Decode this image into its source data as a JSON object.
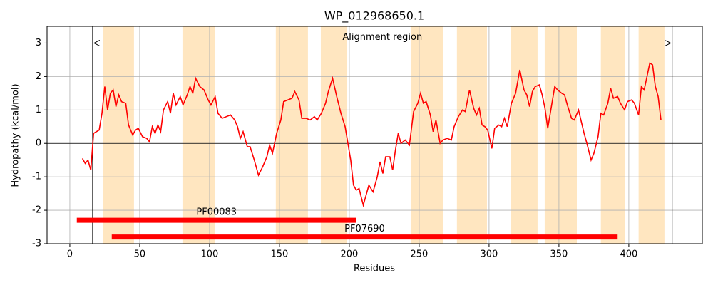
{
  "chart_data": {
    "type": "line",
    "title": "WP_012968650.1",
    "x_label": "Residues",
    "y_label": "Hydropathy (kcal/mol)",
    "xlim": [
      -16.3,
      452.6
    ],
    "ylim": [
      -3,
      3.5
    ],
    "xticks": [
      0,
      50,
      100,
      150,
      200,
      250,
      300,
      350,
      400
    ],
    "yticks": [
      -3,
      -2,
      -1,
      0,
      1,
      2,
      3
    ],
    "grid": true,
    "color": "#ff0000",
    "x": [
      9,
      11,
      13,
      15,
      17,
      19,
      21,
      23,
      25,
      27,
      29,
      31,
      33,
      35,
      37,
      40,
      42,
      45,
      47,
      49,
      52,
      55,
      57,
      59,
      61,
      63,
      65,
      67,
      70,
      72,
      74,
      76,
      79,
      81,
      84,
      86,
      88,
      90,
      93,
      96,
      99,
      101,
      104,
      106,
      109,
      112,
      115,
      118,
      120,
      122,
      124,
      127,
      129,
      132,
      135,
      138,
      141,
      143,
      145,
      148,
      151,
      153,
      156,
      159,
      161,
      164,
      166,
      169,
      172,
      175,
      177,
      180,
      183,
      185,
      188,
      191,
      194,
      197,
      199,
      201,
      203,
      205,
      207,
      210,
      212,
      214,
      217,
      220,
      222,
      224,
      226,
      229,
      231,
      233,
      235,
      237,
      240,
      243,
      246,
      249,
      251,
      253,
      255,
      258,
      260,
      262,
      265,
      267,
      270,
      273,
      275,
      278,
      281,
      283,
      286,
      289,
      291,
      293,
      295,
      297,
      299,
      302,
      304,
      307,
      309,
      311,
      313,
      316,
      319,
      322,
      325,
      327,
      329,
      331,
      333,
      336,
      338,
      340,
      342,
      345,
      347,
      349,
      352,
      354,
      356,
      359,
      361,
      364,
      366,
      368,
      370,
      373,
      375,
      378,
      380,
      382,
      385,
      387,
      389,
      392,
      394,
      397,
      399,
      402,
      404,
      407,
      409,
      411,
      413,
      415,
      417,
      419,
      421,
      423
    ],
    "values": [
      -0.45,
      -0.6,
      -0.5,
      -0.8,
      0.3,
      0.35,
      0.4,
      0.9,
      1.7,
      1.0,
      1.5,
      1.6,
      1.1,
      1.45,
      1.25,
      1.2,
      0.55,
      0.25,
      0.4,
      0.45,
      0.2,
      0.15,
      0.05,
      0.5,
      0.3,
      0.55,
      0.35,
      1.0,
      1.25,
      0.9,
      1.5,
      1.15,
      1.4,
      1.15,
      1.45,
      1.7,
      1.5,
      1.95,
      1.7,
      1.6,
      1.3,
      1.15,
      1.4,
      0.9,
      0.75,
      0.8,
      0.85,
      0.7,
      0.5,
      0.15,
      0.35,
      -0.1,
      -0.1,
      -0.5,
      -0.95,
      -0.7,
      -0.4,
      -0.05,
      -0.3,
      0.3,
      0.7,
      1.25,
      1.3,
      1.35,
      1.55,
      1.3,
      0.75,
      0.75,
      0.7,
      0.8,
      0.7,
      0.9,
      1.2,
      1.55,
      1.95,
      1.4,
      0.9,
      0.5,
      0.0,
      -0.5,
      -1.25,
      -1.4,
      -1.35,
      -1.85,
      -1.55,
      -1.25,
      -1.45,
      -1.0,
      -0.55,
      -0.9,
      -0.4,
      -0.4,
      -0.8,
      -0.2,
      0.3,
      0.0,
      0.1,
      -0.05,
      0.95,
      1.2,
      1.5,
      1.2,
      1.25,
      0.85,
      0.35,
      0.7,
      0.0,
      0.1,
      0.15,
      0.1,
      0.5,
      0.8,
      1.0,
      0.95,
      1.6,
      1.05,
      0.85,
      1.05,
      0.55,
      0.5,
      0.4,
      -0.15,
      0.45,
      0.55,
      0.5,
      0.75,
      0.5,
      1.2,
      1.5,
      2.2,
      1.6,
      1.45,
      1.1,
      1.55,
      1.7,
      1.75,
      1.45,
      1.05,
      0.45,
      1.2,
      1.7,
      1.6,
      1.5,
      1.45,
      1.15,
      0.75,
      0.7,
      1.0,
      0.65,
      0.3,
      0.0,
      -0.5,
      -0.3,
      0.2,
      0.9,
      0.85,
      1.2,
      1.65,
      1.35,
      1.4,
      1.2,
      1.0,
      1.25,
      1.3,
      1.2,
      0.85,
      1.7,
      1.6,
      2.0,
      2.4,
      2.35,
      1.7,
      1.4,
      0.7
    ],
    "shaded_regions": {
      "color": "#ffe6c0",
      "ranges": [
        [
          23.5,
          45.9
        ],
        [
          80.6,
          104
        ],
        [
          147.4,
          170.4
        ],
        [
          179.6,
          198.5
        ],
        [
          243.9,
          267.3
        ],
        [
          277,
          298.5
        ],
        [
          315.8,
          334.7
        ],
        [
          339.8,
          362.8
        ],
        [
          380,
          397.4
        ],
        [
          407,
          425.5
        ]
      ]
    },
    "alignment_region": {
      "label": "Alignment region",
      "start": 16.3,
      "end": 431
    },
    "domains": [
      {
        "name": "PF00083",
        "start": 5,
        "end": 205,
        "y": -2.3
      },
      {
        "name": "PF07690",
        "start": 30,
        "end": 392,
        "y": -2.8
      }
    ],
    "domain_color": "#ff0000"
  }
}
